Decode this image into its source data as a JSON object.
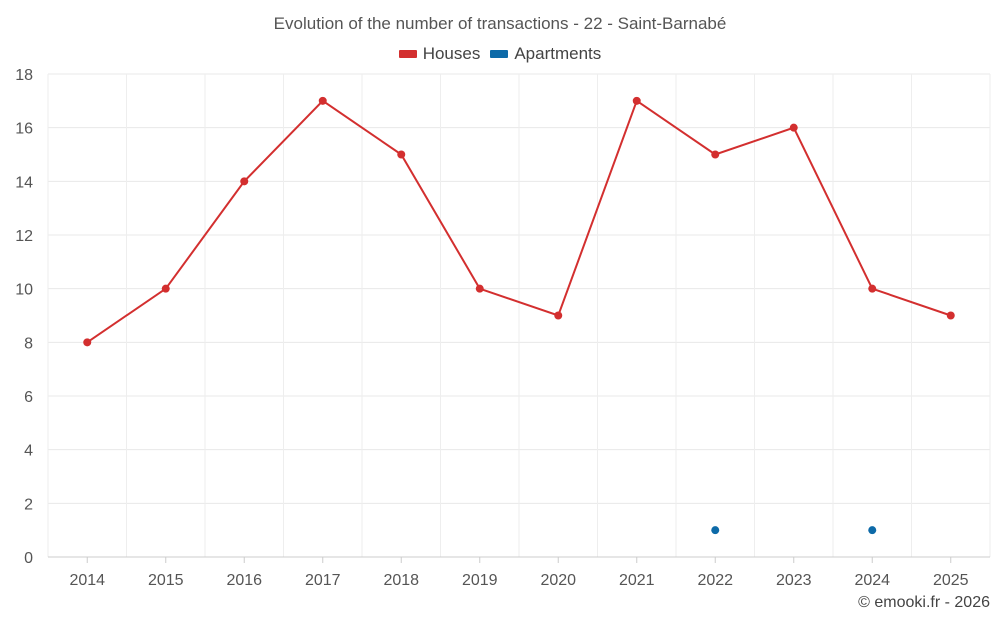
{
  "chart_data": {
    "type": "line",
    "title": "Evolution of the number of transactions - 22 - Saint-Barnabé",
    "categories": [
      "2014",
      "2015",
      "2016",
      "2017",
      "2018",
      "2019",
      "2020",
      "2021",
      "2022",
      "2023",
      "2024",
      "2025"
    ],
    "series": [
      {
        "name": "Houses",
        "color": "#d32f2f",
        "values": [
          8,
          10,
          14,
          17,
          15,
          10,
          9,
          17,
          15,
          16,
          10,
          9
        ]
      },
      {
        "name": "Apartments",
        "color": "#0d6aa8",
        "values": [
          null,
          null,
          null,
          null,
          null,
          null,
          null,
          null,
          1,
          null,
          1,
          null
        ]
      }
    ],
    "yticks": [
      "0",
      "2",
      "4",
      "6",
      "8",
      "10",
      "12",
      "14",
      "16",
      "18"
    ],
    "ylim": [
      0,
      18
    ],
    "xlabel": "",
    "ylabel": "",
    "grid": true,
    "legend": "top-center"
  },
  "credit": "© emooki.fr - 2026"
}
